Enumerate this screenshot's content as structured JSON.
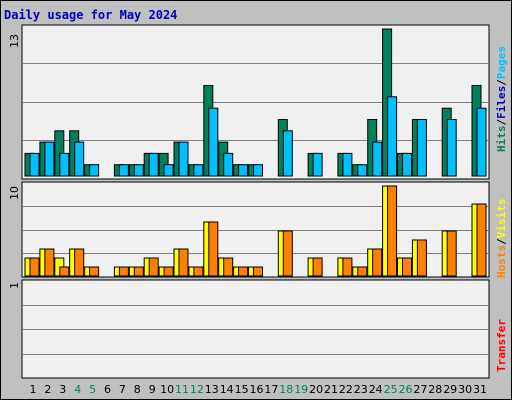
{
  "title": "Daily usage for May 2024",
  "colors": {
    "background": "#c0c0c0",
    "panel": "#f0f0f0",
    "title": "#0000c0",
    "hits": "#00805c",
    "files": "#0080ff",
    "pages": "#00c0ff",
    "visits": "#ffff00",
    "hosts": "#ff8000",
    "transfer": "#ff0000",
    "weekend": "#00805c"
  },
  "chart_data": [
    {
      "type": "bar",
      "panel": "hits-files-pages",
      "ymax_label": "13",
      "ymax": 13,
      "right_label": [
        "Hits",
        "Files",
        "Pages"
      ],
      "categories": [
        "1",
        "2",
        "3",
        "4",
        "5",
        "6",
        "7",
        "8",
        "9",
        "10",
        "11",
        "12",
        "13",
        "14",
        "15",
        "16",
        "17",
        "18",
        "19",
        "20",
        "21",
        "22",
        "23",
        "24",
        "25",
        "26",
        "27",
        "28",
        "29",
        "30",
        "31"
      ],
      "weekend_days": [
        "4",
        "5",
        "11",
        "12",
        "18",
        "19",
        "25",
        "26"
      ],
      "series": [
        {
          "name": "Hits",
          "values": [
            2,
            3,
            4,
            4,
            1,
            0,
            1,
            1,
            2,
            2,
            3,
            1,
            8,
            3,
            1,
            1,
            0,
            5,
            0,
            2,
            0,
            2,
            1,
            5,
            13,
            2,
            5,
            0,
            6,
            0,
            8
          ]
        },
        {
          "name": "Files",
          "values": [
            2,
            3,
            2,
            3,
            1,
            0,
            1,
            1,
            2,
            1,
            3,
            1,
            6,
            2,
            1,
            1,
            0,
            4,
            0,
            2,
            0,
            2,
            1,
            3,
            7,
            2,
            5,
            0,
            5,
            0,
            6
          ]
        }
      ]
    },
    {
      "type": "bar",
      "panel": "visits-hosts",
      "ymax_label": "10",
      "ymax": 10,
      "right_label": [
        "Visits",
        "Hosts"
      ],
      "categories": [
        "1",
        "2",
        "3",
        "4",
        "5",
        "6",
        "7",
        "8",
        "9",
        "10",
        "11",
        "12",
        "13",
        "14",
        "15",
        "16",
        "17",
        "18",
        "19",
        "20",
        "21",
        "22",
        "23",
        "24",
        "25",
        "26",
        "27",
        "28",
        "29",
        "30",
        "31"
      ],
      "series": [
        {
          "name": "Visits",
          "values": [
            2,
            3,
            2,
            3,
            1,
            0,
            1,
            1,
            2,
            1,
            3,
            1,
            6,
            2,
            1,
            1,
            0,
            5,
            0,
            2,
            0,
            2,
            1,
            3,
            10,
            2,
            4,
            0,
            5,
            0,
            8
          ]
        },
        {
          "name": "Hosts",
          "values": [
            2,
            3,
            1,
            3,
            1,
            0,
            1,
            1,
            2,
            1,
            3,
            1,
            6,
            2,
            1,
            1,
            0,
            5,
            0,
            2,
            0,
            2,
            1,
            3,
            10,
            2,
            4,
            0,
            5,
            0,
            8
          ]
        }
      ]
    },
    {
      "type": "bar",
      "panel": "transfer",
      "ymax_label": "1",
      "ymax": 1,
      "right_label": [
        "Transfer"
      ],
      "categories": [
        "1",
        "2",
        "3",
        "4",
        "5",
        "6",
        "7",
        "8",
        "9",
        "10",
        "11",
        "12",
        "13",
        "14",
        "15",
        "16",
        "17",
        "18",
        "19",
        "20",
        "21",
        "22",
        "23",
        "24",
        "25",
        "26",
        "27",
        "28",
        "29",
        "30",
        "31"
      ],
      "series": [
        {
          "name": "Transfer",
          "values": [
            0,
            0,
            0,
            0,
            0,
            0,
            0,
            0,
            0,
            0,
            0,
            0,
            0,
            0,
            0,
            0,
            0,
            0,
            0,
            0,
            0,
            0,
            0,
            0,
            0,
            0,
            0,
            0,
            0,
            0,
            0
          ]
        }
      ]
    }
  ]
}
